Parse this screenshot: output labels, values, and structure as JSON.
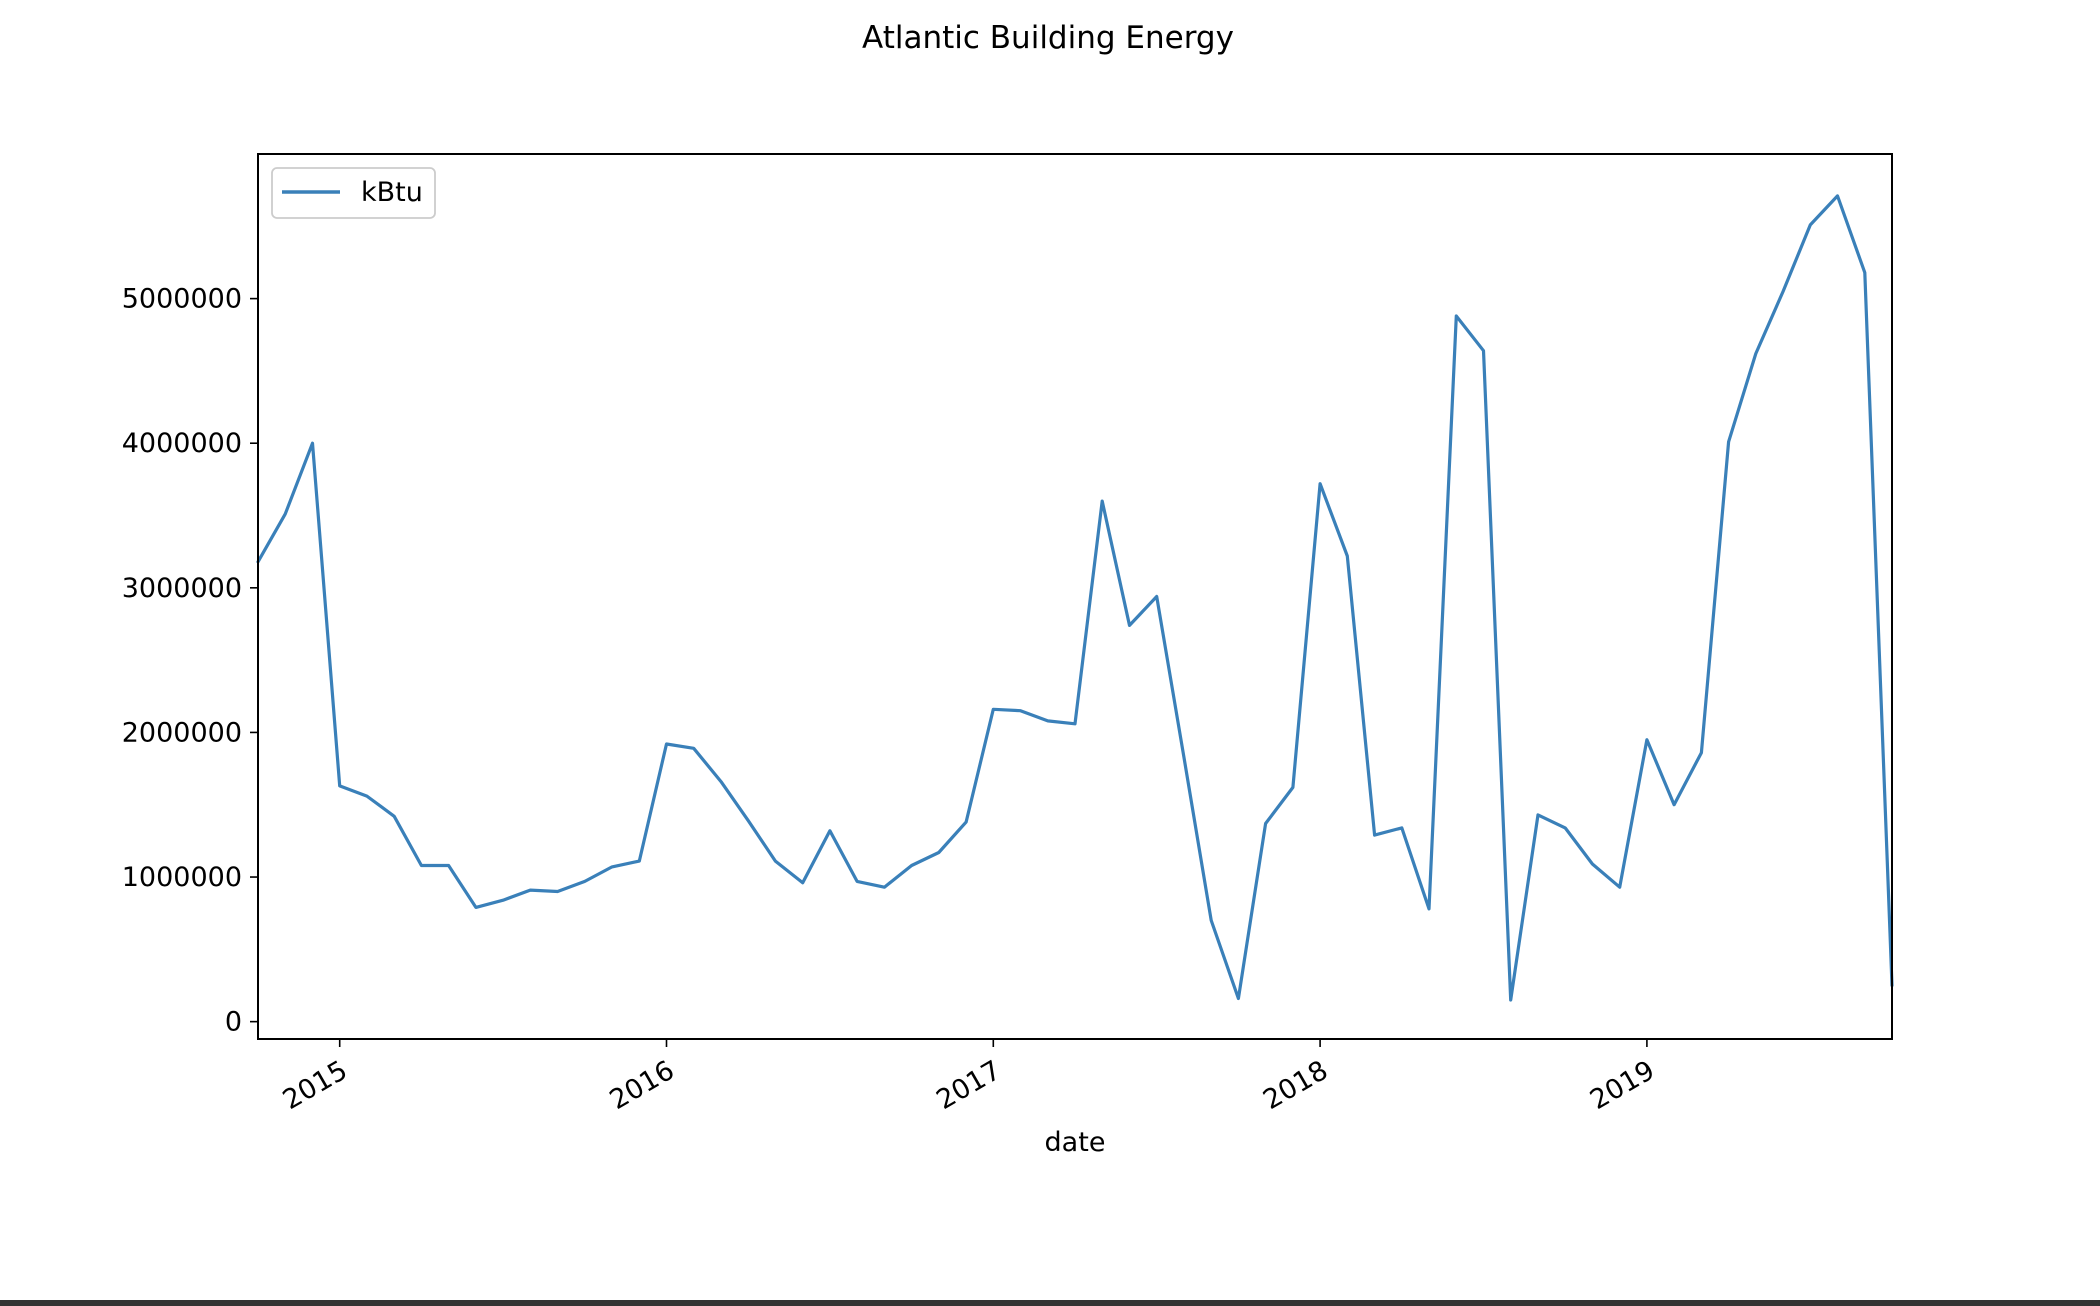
{
  "colors": {
    "series": "#3a80b9",
    "axes": "#000000",
    "background": "#ffffff"
  },
  "chart_data": {
    "type": "line",
    "title": "Atlantic Building Energy",
    "xlabel": "date",
    "ylabel": "",
    "grid": false,
    "legend": "top-left",
    "xlim": [
      "2014-10-01",
      "2019-10-01"
    ],
    "ylim": [
      -120000,
      6000000
    ],
    "x_ticks": [
      {
        "value": "2015-01-01",
        "label": "2015"
      },
      {
        "value": "2016-01-01",
        "label": "2016"
      },
      {
        "value": "2017-01-01",
        "label": "2017"
      },
      {
        "value": "2018-01-01",
        "label": "2018"
      },
      {
        "value": "2019-01-01",
        "label": "2019"
      }
    ],
    "y_ticks": [
      {
        "value": 0,
        "label": "0"
      },
      {
        "value": 1000000,
        "label": "1000000"
      },
      {
        "value": 2000000,
        "label": "2000000"
      },
      {
        "value": 3000000,
        "label": "3000000"
      },
      {
        "value": 4000000,
        "label": "4000000"
      },
      {
        "value": 5000000,
        "label": "5000000"
      }
    ],
    "series": [
      {
        "name": "kBtu",
        "x": [
          "2014-10-01",
          "2014-11-01",
          "2014-12-01",
          "2015-01-01",
          "2015-02-01",
          "2015-03-01",
          "2015-04-01",
          "2015-05-01",
          "2015-06-01",
          "2015-07-01",
          "2015-08-01",
          "2015-09-01",
          "2015-10-01",
          "2015-11-01",
          "2015-12-01",
          "2016-01-01",
          "2016-02-01",
          "2016-03-01",
          "2016-04-01",
          "2016-05-01",
          "2016-06-01",
          "2016-07-01",
          "2016-08-01",
          "2016-09-01",
          "2016-10-01",
          "2016-11-01",
          "2016-12-01",
          "2017-01-01",
          "2017-02-01",
          "2017-03-01",
          "2017-04-01",
          "2017-05-01",
          "2017-06-01",
          "2017-07-01",
          "2017-08-01",
          "2017-09-01",
          "2017-10-01",
          "2017-11-01",
          "2017-12-01",
          "2018-01-01",
          "2018-02-01",
          "2018-03-01",
          "2018-04-01",
          "2018-05-01",
          "2018-06-01",
          "2018-07-01",
          "2018-08-01",
          "2018-09-01",
          "2018-10-01",
          "2018-11-01",
          "2018-12-01",
          "2019-01-01",
          "2019-02-01",
          "2019-03-01",
          "2019-04-01",
          "2019-05-01",
          "2019-06-01",
          "2019-07-01",
          "2019-08-01",
          "2019-09-01",
          "2019-10-01"
        ],
        "values": [
          3180000,
          3510000,
          4000000,
          1630000,
          1560000,
          1420000,
          1080000,
          1080000,
          790000,
          840000,
          910000,
          900000,
          970000,
          1070000,
          1110000,
          1920000,
          1890000,
          1660000,
          1390000,
          1110000,
          960000,
          1320000,
          970000,
          930000,
          1080000,
          1170000,
          1380000,
          2160000,
          2150000,
          2080000,
          2060000,
          3600000,
          2740000,
          2940000,
          1830000,
          700000,
          160000,
          1370000,
          1620000,
          3720000,
          3220000,
          1290000,
          1340000,
          780000,
          4880000,
          4640000,
          150000,
          1430000,
          1340000,
          1090000,
          930000,
          1950000,
          1500000,
          1860000,
          4010000,
          4620000,
          5050000,
          5510000,
          5710000,
          5180000,
          250000
        ]
      }
    ]
  }
}
